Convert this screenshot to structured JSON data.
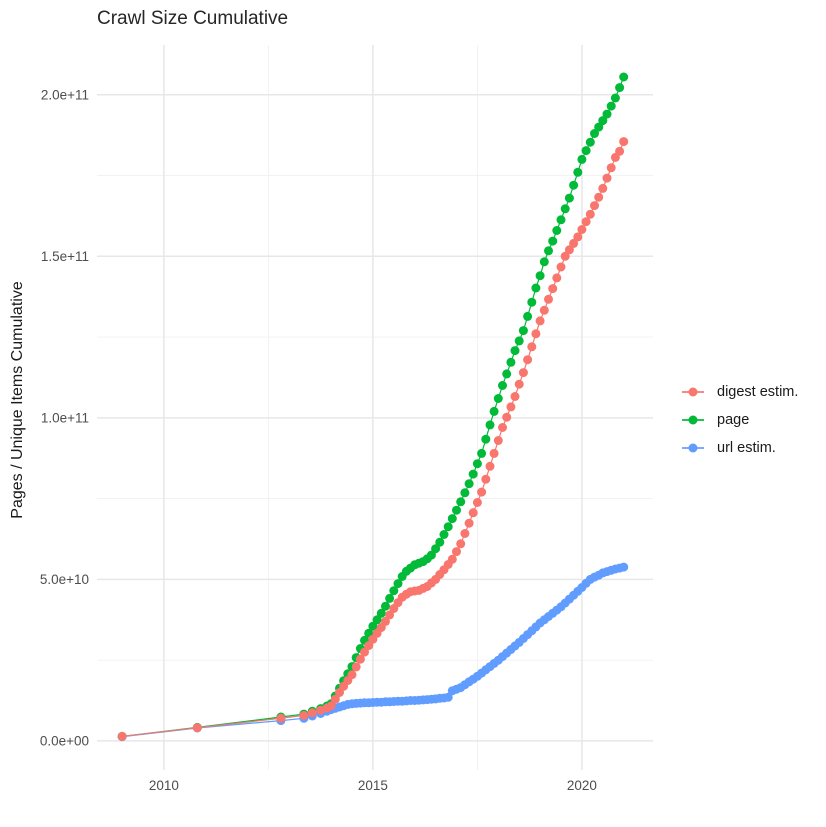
{
  "title": "Crawl Size Cumulative",
  "ylabel": "Pages / Unique Items Cumulative",
  "colors": {
    "background": "#ffffff",
    "title_text": "#262626",
    "axis_text": "#4d4d4d",
    "axis_title_text": "#1a1a1a",
    "grid_major": "#e7e7e7",
    "grid_minor": "#f1f1f1",
    "digest_estim": "#F8766D",
    "page": "#00BA38",
    "url_estim": "#619CFF"
  },
  "chart_data": {
    "type": "scatter",
    "title": "Crawl Size Cumulative",
    "xlabel": "",
    "ylabel": "Pages / Unique Items Cumulative",
    "value_unit_multiplier": 1000000000.0,
    "grid": true,
    "legend_position": "right",
    "x_ticks": [
      {
        "v": 2010,
        "label": "2010"
      },
      {
        "v": 2015,
        "label": "2015"
      },
      {
        "v": 2020,
        "label": "2020"
      }
    ],
    "x_minor_ticks": [
      2012.5,
      2017.5
    ],
    "y_ticks": [
      {
        "v": 0,
        "label": "0.0e+00"
      },
      {
        "v": 50,
        "label": "5.0e+10"
      },
      {
        "v": 100,
        "label": "1.0e+11"
      },
      {
        "v": 150,
        "label": "1.5e+11"
      },
      {
        "v": 200,
        "label": "2.0e+11"
      }
    ],
    "y_minor_ticks": [
      25,
      75,
      125,
      175
    ],
    "x_range": [
      2008.4,
      2021.7
    ],
    "y_range": [
      -9,
      215.4
    ],
    "draw_order": [
      "page",
      "url estim.",
      "digest estim."
    ],
    "series": [
      {
        "name": "digest estim.",
        "color": "#F8766D",
        "points": [
          [
            2009,
            1.4
          ],
          [
            2010.8,
            4.1
          ],
          [
            2012.8,
            7
          ],
          [
            2013.35,
            7.9
          ],
          [
            2013.55,
            8.7
          ],
          [
            2013.75,
            9.5
          ],
          [
            2013.9,
            10.2
          ],
          [
            2014,
            10.8
          ],
          [
            2014.1,
            12.9
          ],
          [
            2014.2,
            15
          ],
          [
            2014.3,
            16.9
          ],
          [
            2014.4,
            18.7
          ],
          [
            2014.5,
            20.5
          ],
          [
            2014.6,
            22.9
          ],
          [
            2014.7,
            25.3
          ],
          [
            2014.8,
            27.5
          ],
          [
            2014.9,
            29.5
          ],
          [
            2015,
            31.5
          ],
          [
            2015.1,
            33.3
          ],
          [
            2015.2,
            35.1
          ],
          [
            2015.3,
            37
          ],
          [
            2015.4,
            39
          ],
          [
            2015.5,
            41
          ],
          [
            2015.6,
            42.8
          ],
          [
            2015.7,
            44.5
          ],
          [
            2015.8,
            45.4
          ],
          [
            2015.9,
            46.2
          ],
          [
            2016,
            46.4
          ],
          [
            2016.1,
            46.6
          ],
          [
            2016.2,
            47.2
          ],
          [
            2016.3,
            47.8
          ],
          [
            2016.4,
            48.9
          ],
          [
            2016.5,
            50
          ],
          [
            2016.6,
            51.5
          ],
          [
            2016.7,
            53
          ],
          [
            2016.8,
            54.6
          ],
          [
            2016.9,
            56.2
          ],
          [
            2017,
            58.6
          ],
          [
            2017.1,
            61
          ],
          [
            2017.2,
            64.2
          ],
          [
            2017.3,
            67.4
          ],
          [
            2017.4,
            70.6
          ],
          [
            2017.5,
            73.8
          ],
          [
            2017.6,
            77
          ],
          [
            2017.7,
            81
          ],
          [
            2017.8,
            85
          ],
          [
            2017.9,
            89
          ],
          [
            2018,
            93
          ],
          [
            2018.1,
            97
          ],
          [
            2018.2,
            100.2
          ],
          [
            2018.3,
            103.4
          ],
          [
            2018.4,
            106.6
          ],
          [
            2018.5,
            110.4
          ],
          [
            2018.6,
            114
          ],
          [
            2018.7,
            118
          ],
          [
            2018.8,
            122
          ],
          [
            2018.9,
            126
          ],
          [
            2019,
            130
          ],
          [
            2019.1,
            133.3
          ],
          [
            2019.2,
            136.7
          ],
          [
            2019.3,
            140
          ],
          [
            2019.4,
            143.3
          ],
          [
            2019.5,
            146.7
          ],
          [
            2019.6,
            150
          ],
          [
            2019.7,
            152
          ],
          [
            2019.8,
            154
          ],
          [
            2019.9,
            156
          ],
          [
            2020,
            158.3
          ],
          [
            2020.1,
            160.7
          ],
          [
            2020.2,
            163
          ],
          [
            2020.3,
            165.7
          ],
          [
            2020.4,
            168.3
          ],
          [
            2020.5,
            171
          ],
          [
            2020.6,
            174.2
          ],
          [
            2020.7,
            177.4
          ],
          [
            2020.8,
            180.6
          ],
          [
            2020.9,
            182.5
          ],
          [
            2021,
            185.5
          ]
        ]
      },
      {
        "name": "page",
        "color": "#00BA38",
        "points": [
          [
            2009,
            1.4
          ],
          [
            2010.8,
            4.2
          ],
          [
            2012.8,
            7.4
          ],
          [
            2013.35,
            8.3
          ],
          [
            2013.55,
            9.2
          ],
          [
            2013.75,
            10
          ],
          [
            2013.9,
            10.8
          ],
          [
            2014,
            11.5
          ],
          [
            2014.1,
            13.9
          ],
          [
            2014.2,
            16.3
          ],
          [
            2014.3,
            18.6
          ],
          [
            2014.4,
            20.8
          ],
          [
            2014.5,
            23
          ],
          [
            2014.6,
            25.8
          ],
          [
            2014.7,
            28.6
          ],
          [
            2014.8,
            31.1
          ],
          [
            2014.9,
            33.3
          ],
          [
            2015,
            35.5
          ],
          [
            2015.1,
            37.5
          ],
          [
            2015.2,
            39.5
          ],
          [
            2015.3,
            41.7
          ],
          [
            2015.4,
            44.1
          ],
          [
            2015.5,
            46.5
          ],
          [
            2015.6,
            48.7
          ],
          [
            2015.7,
            50.9
          ],
          [
            2015.8,
            52.5
          ],
          [
            2015.9,
            53.5
          ],
          [
            2016,
            54.5
          ],
          [
            2016.1,
            55
          ],
          [
            2016.2,
            55.5
          ],
          [
            2016.3,
            56.4
          ],
          [
            2016.4,
            57.5
          ],
          [
            2016.5,
            59.5
          ],
          [
            2016.6,
            61.5
          ],
          [
            2016.7,
            63.9
          ],
          [
            2016.8,
            66.3
          ],
          [
            2016.9,
            68.8
          ],
          [
            2017,
            71.4
          ],
          [
            2017.1,
            74
          ],
          [
            2017.2,
            76.8
          ],
          [
            2017.3,
            79.6
          ],
          [
            2017.4,
            82.6
          ],
          [
            2017.5,
            85.8
          ],
          [
            2017.6,
            89
          ],
          [
            2017.7,
            93.4
          ],
          [
            2017.8,
            97.8
          ],
          [
            2017.9,
            102
          ],
          [
            2018,
            106
          ],
          [
            2018.1,
            110
          ],
          [
            2018.2,
            113.6
          ],
          [
            2018.3,
            117.2
          ],
          [
            2018.4,
            120.8
          ],
          [
            2018.5,
            123.8
          ],
          [
            2018.6,
            127
          ],
          [
            2018.7,
            131.4
          ],
          [
            2018.8,
            135.8
          ],
          [
            2018.9,
            140.2
          ],
          [
            2019,
            144
          ],
          [
            2019.1,
            148.3
          ],
          [
            2019.2,
            151.7
          ],
          [
            2019.3,
            154.7
          ],
          [
            2019.4,
            158
          ],
          [
            2019.5,
            161.3
          ],
          [
            2019.6,
            164.7
          ],
          [
            2019.7,
            168
          ],
          [
            2019.8,
            172
          ],
          [
            2019.9,
            176
          ],
          [
            2020,
            180
          ],
          [
            2020.1,
            182.7
          ],
          [
            2020.2,
            185.3
          ],
          [
            2020.3,
            188
          ],
          [
            2020.4,
            190
          ],
          [
            2020.5,
            192
          ],
          [
            2020.6,
            194
          ],
          [
            2020.7,
            196.5
          ],
          [
            2020.8,
            199
          ],
          [
            2020.9,
            202.2
          ],
          [
            2021,
            205.5
          ]
        ]
      },
      {
        "name": "url estim.",
        "color": "#619CFF",
        "points": [
          [
            2009,
            1.3
          ],
          [
            2010.8,
            4
          ],
          [
            2012.8,
            6.3
          ],
          [
            2013.35,
            7
          ],
          [
            2013.55,
            7.7
          ],
          [
            2013.75,
            8.5
          ],
          [
            2013.9,
            9.2
          ],
          [
            2014,
            9.7
          ],
          [
            2014.1,
            10.1
          ],
          [
            2014.2,
            10.5
          ],
          [
            2014.3,
            10.9
          ],
          [
            2014.4,
            11.3
          ],
          [
            2014.5,
            11.5
          ],
          [
            2014.6,
            11.6
          ],
          [
            2014.7,
            11.7
          ],
          [
            2014.8,
            11.8
          ],
          [
            2014.9,
            11.8
          ],
          [
            2015,
            11.9
          ],
          [
            2015.1,
            12
          ],
          [
            2015.2,
            12
          ],
          [
            2015.3,
            12.1
          ],
          [
            2015.4,
            12.1
          ],
          [
            2015.5,
            12.2
          ],
          [
            2015.6,
            12.3
          ],
          [
            2015.7,
            12.3
          ],
          [
            2015.8,
            12.4
          ],
          [
            2015.9,
            12.5
          ],
          [
            2016,
            12.5
          ],
          [
            2016.1,
            12.6
          ],
          [
            2016.2,
            12.7
          ],
          [
            2016.3,
            12.8
          ],
          [
            2016.4,
            12.9
          ],
          [
            2016.5,
            13
          ],
          [
            2016.6,
            13.2
          ],
          [
            2016.7,
            13.3
          ],
          [
            2016.8,
            13.5
          ],
          [
            2016.9,
            15.5
          ],
          [
            2017,
            16
          ],
          [
            2017.1,
            16.5
          ],
          [
            2017.2,
            17.4
          ],
          [
            2017.3,
            18.3
          ],
          [
            2017.4,
            19.1
          ],
          [
            2017.5,
            20
          ],
          [
            2017.6,
            21
          ],
          [
            2017.7,
            22
          ],
          [
            2017.8,
            23
          ],
          [
            2017.9,
            24
          ],
          [
            2018,
            25
          ],
          [
            2018.1,
            26.1
          ],
          [
            2018.2,
            27.2
          ],
          [
            2018.3,
            28.3
          ],
          [
            2018.4,
            29.4
          ],
          [
            2018.5,
            30.5
          ],
          [
            2018.6,
            31.7
          ],
          [
            2018.7,
            32.9
          ],
          [
            2018.8,
            34.1
          ],
          [
            2018.9,
            35.3
          ],
          [
            2019,
            36.5
          ],
          [
            2019.1,
            37.5
          ],
          [
            2019.2,
            38.5
          ],
          [
            2019.3,
            39.5
          ],
          [
            2019.4,
            40.5
          ],
          [
            2019.5,
            41.5
          ],
          [
            2019.6,
            42.7
          ],
          [
            2019.7,
            43.9
          ],
          [
            2019.8,
            45.1
          ],
          [
            2019.9,
            46.3
          ],
          [
            2020,
            47.5
          ],
          [
            2020.1,
            48.8
          ],
          [
            2020.2,
            50
          ],
          [
            2020.3,
            50.7
          ],
          [
            2020.4,
            51.3
          ],
          [
            2020.5,
            52
          ],
          [
            2020.6,
            52.4
          ],
          [
            2020.7,
            52.8
          ],
          [
            2020.8,
            53.2
          ],
          [
            2020.9,
            53.5
          ],
          [
            2021,
            53.8
          ]
        ]
      }
    ]
  }
}
